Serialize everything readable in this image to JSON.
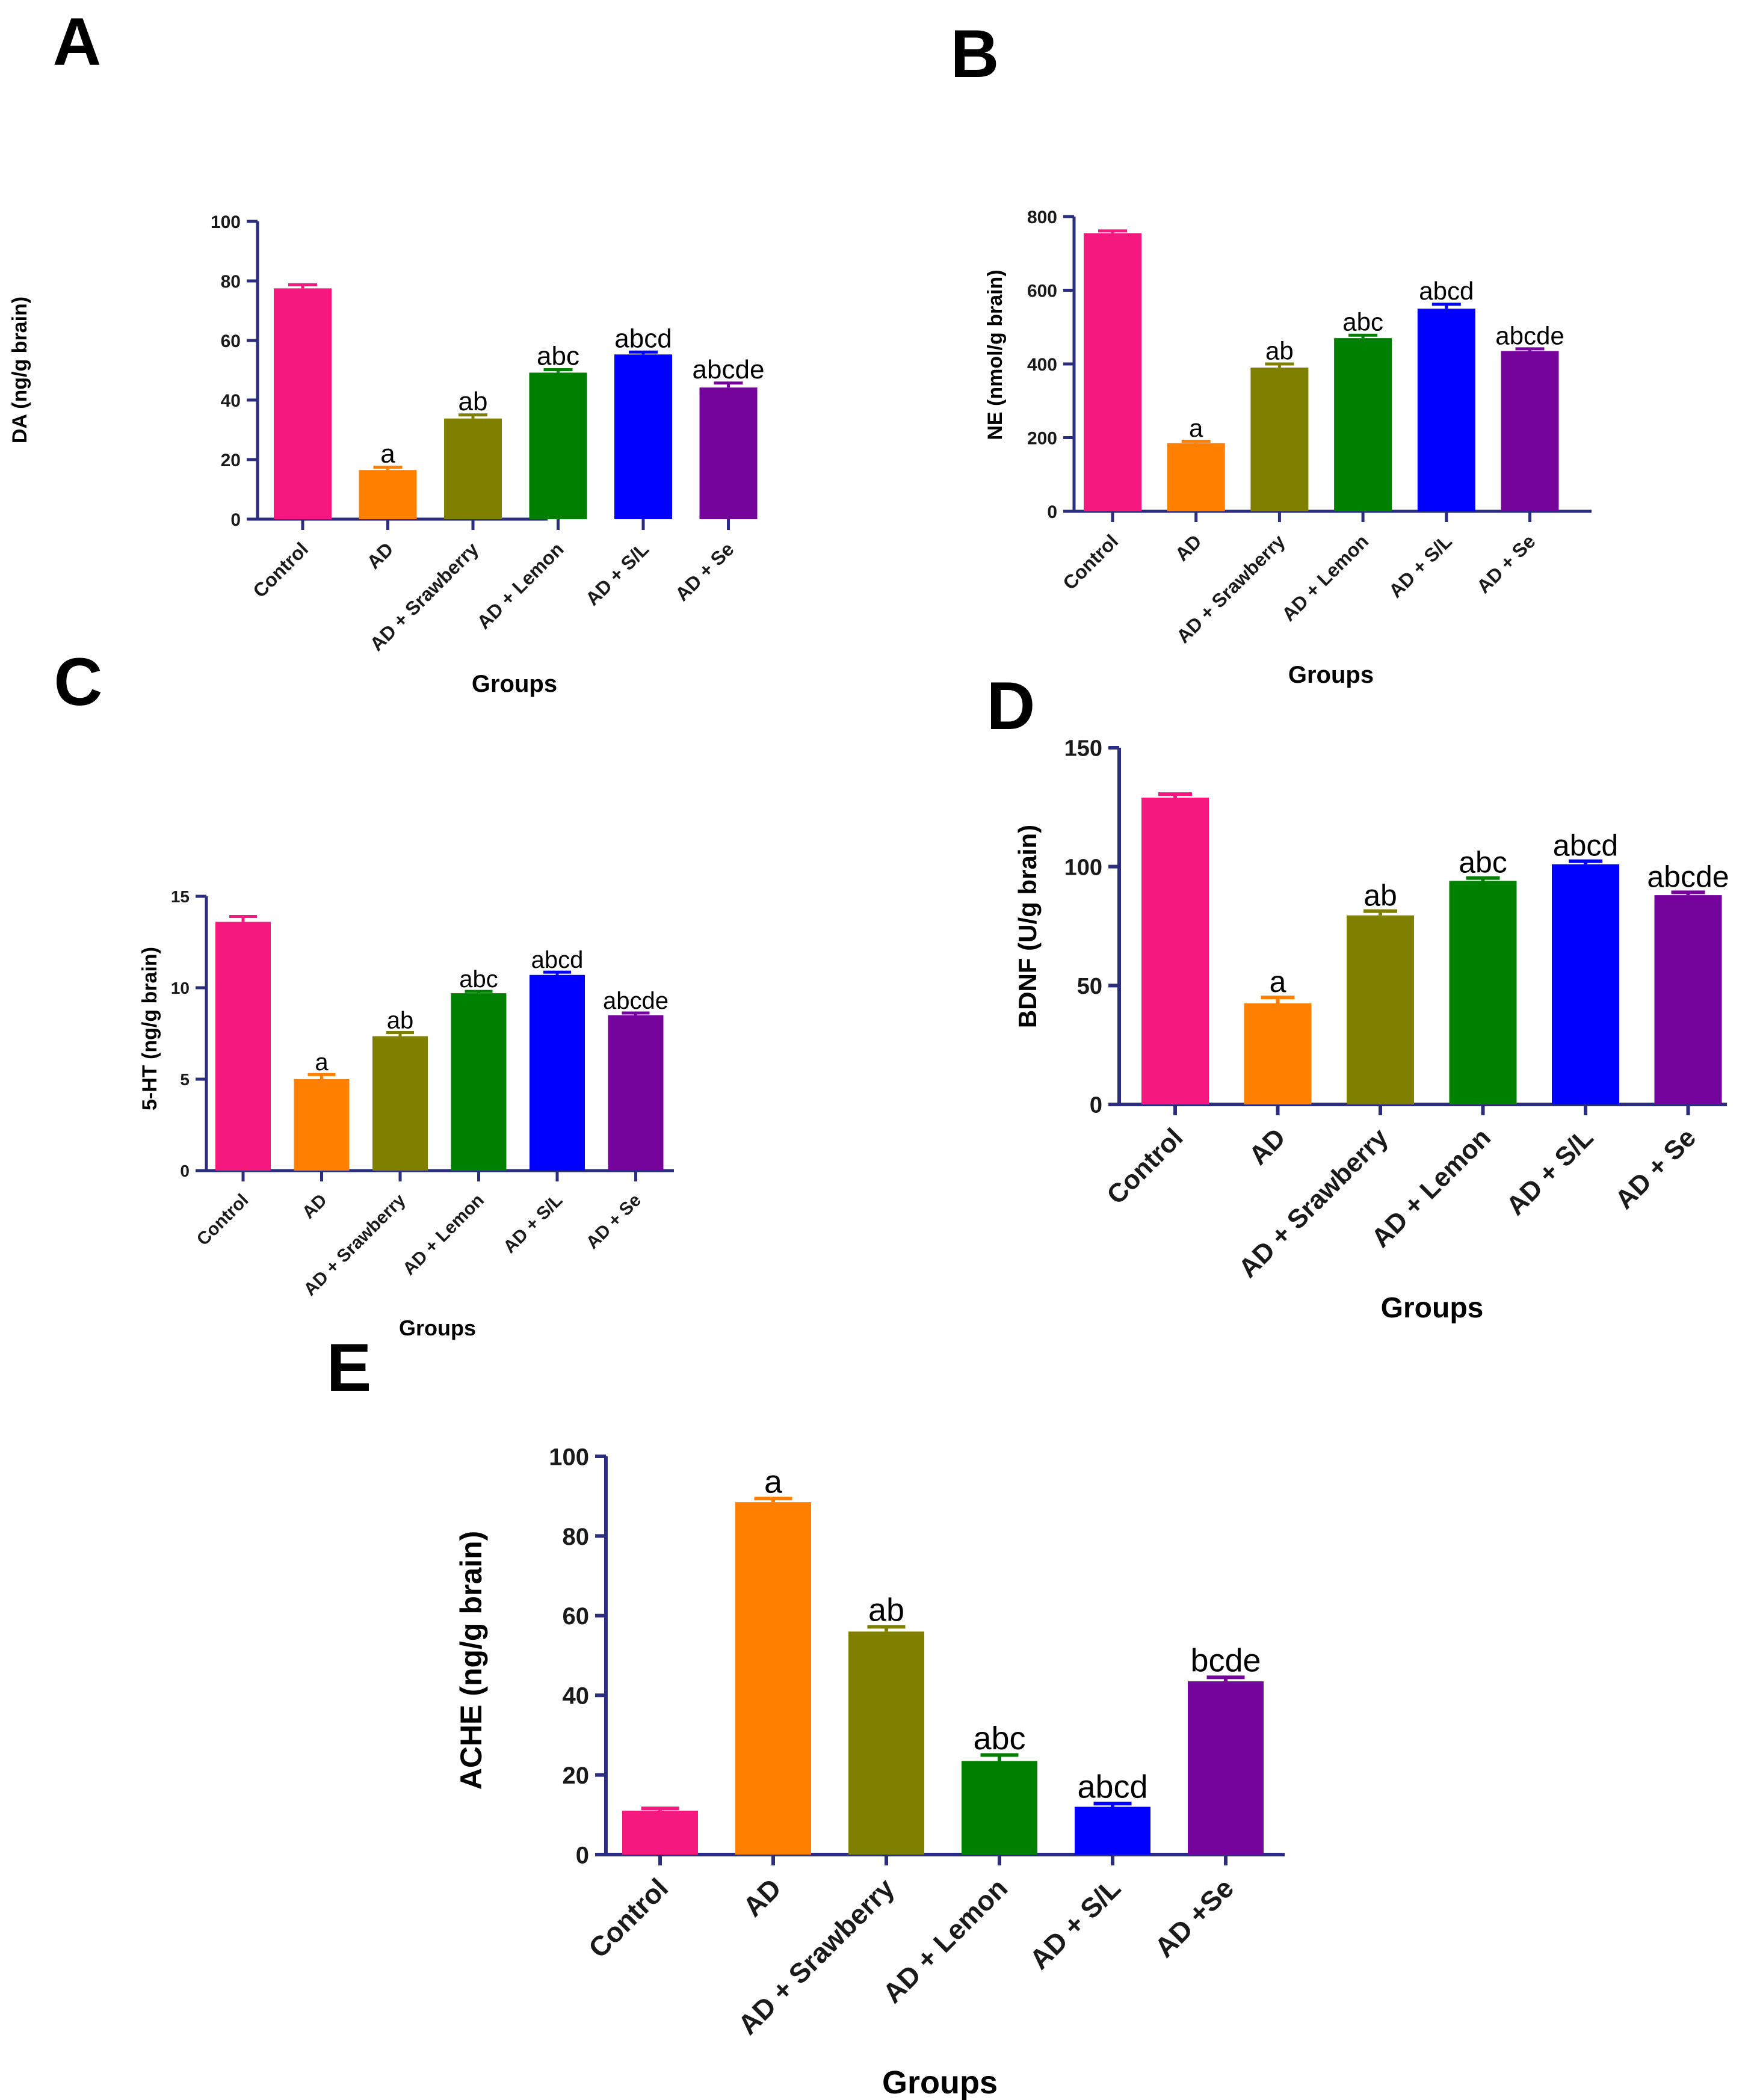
{
  "colors": [
    "#f5187f",
    "#ff7f00",
    "#7f7f00",
    "#008000",
    "#0000fe",
    "#74049b"
  ],
  "axis_color": "#2b2d7e",
  "chart_data": [
    {
      "id": "A",
      "panel_label": "A",
      "type": "bar",
      "categories": [
        "Control",
        "AD",
        "AD + Srawberry",
        "AD + Lemon",
        "AD + S/L",
        "AD + Se"
      ],
      "values": [
        77.5,
        16.5,
        33.8,
        49.2,
        55.3,
        44.2
      ],
      "errors": [
        1.2,
        0.9,
        1.2,
        1.0,
        0.8,
        1.5
      ],
      "sig_labels": [
        "",
        "a",
        "ab",
        "abc",
        "abcd",
        "abcde"
      ],
      "ylabel": "DA (ng/g brain)",
      "xlabel": "Groups",
      "ylim": [
        0,
        100
      ],
      "yticks": [
        "0",
        "20",
        "40",
        "60",
        "80",
        "100"
      ]
    },
    {
      "id": "B",
      "panel_label": "B",
      "type": "bar",
      "categories": [
        "Control",
        "AD",
        "AD + Srawberry",
        "AD + Lemon",
        "AD + S/L",
        "AD + Se"
      ],
      "values": [
        755,
        185,
        390,
        470,
        550,
        435
      ],
      "errors": [
        6,
        5,
        10,
        8,
        12,
        6
      ],
      "sig_labels": [
        "",
        "a",
        "ab",
        "abc",
        "abcd",
        "abcde"
      ],
      "ylabel": "NE (nmol/g brain)",
      "xlabel": "Groups",
      "ylim": [
        0,
        800
      ],
      "yticks": [
        "0",
        "200",
        "400",
        "600",
        "800"
      ]
    },
    {
      "id": "C",
      "panel_label": "C",
      "type": "bar",
      "categories": [
        "Control",
        "AD",
        "AD + Srawberry",
        "AD + Lemon",
        "AD + S/L",
        "AD + Se"
      ],
      "values": [
        13.6,
        5.0,
        7.35,
        9.7,
        10.7,
        8.5
      ],
      "errors": [
        0.3,
        0.25,
        0.2,
        0.1,
        0.15,
        0.12
      ],
      "sig_labels": [
        "",
        "a",
        "ab",
        "abc",
        "abcd",
        "abcde"
      ],
      "ylabel": "5-HT (ng/g brain)",
      "xlabel": "Groups",
      "ylim": [
        0,
        15
      ],
      "yticks": [
        "0",
        "5",
        "10",
        "15"
      ]
    },
    {
      "id": "D",
      "panel_label": "D",
      "type": "bar",
      "categories": [
        "Control",
        "AD",
        "AD + Srawberry",
        "AD + Lemon",
        "AD + S/L",
        "AD + Se"
      ],
      "values": [
        129,
        42.5,
        79.5,
        94,
        101,
        88
      ],
      "errors": [
        1.5,
        2.5,
        1.8,
        1.2,
        1.3,
        1.2
      ],
      "sig_labels": [
        "",
        "a",
        "ab",
        "abc",
        "abcd",
        "abcde"
      ],
      "ylabel": "BDNF (U/g brain)",
      "xlabel": "Groups",
      "ylim": [
        0,
        150
      ],
      "yticks": [
        "0",
        "50",
        "100",
        "150"
      ]
    },
    {
      "id": "E",
      "panel_label": "E",
      "type": "bar",
      "categories": [
        "Control",
        "AD",
        "AD + Srawberry",
        "AD + Lemon",
        "AD + S/L",
        "AD +Se"
      ],
      "values": [
        11,
        88.5,
        56,
        23.5,
        12,
        43.5
      ],
      "errors": [
        0.6,
        0.9,
        1.2,
        1.5,
        0.8,
        1.0
      ],
      "sig_labels": [
        "",
        "a",
        "ab",
        "abc",
        "abcd",
        "bcde"
      ],
      "ylabel": "ACHE (ng/g brain)",
      "xlabel": "Groups",
      "ylim": [
        0,
        100
      ],
      "yticks": [
        "0",
        "20",
        "40",
        "60",
        "80",
        "100"
      ]
    }
  ]
}
